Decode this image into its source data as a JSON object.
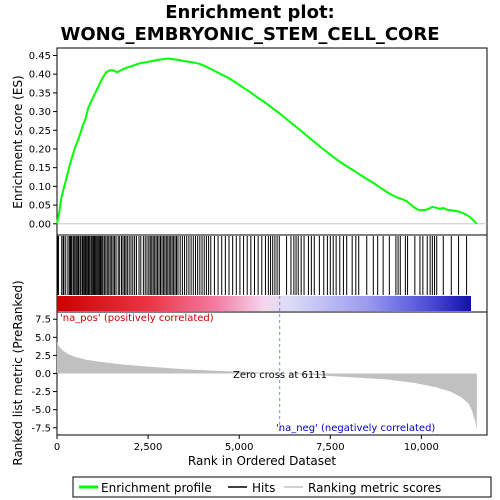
{
  "chart_data": {
    "type": "line",
    "title_line1": "Enrichment plot:",
    "title_line2": "WONG_EMBRYONIC_STEM_CELL_CORE",
    "top_panel": {
      "ylabel": "Enrichment score (ES)",
      "ylim": [
        -0.03,
        0.47
      ],
      "yticks": [
        "0.00",
        "0.05",
        "0.10",
        "0.15",
        "0.20",
        "0.25",
        "0.30",
        "0.35",
        "0.40",
        "0.45"
      ],
      "ytick_values": [
        0,
        0.05,
        0.1,
        0.15,
        0.2,
        0.25,
        0.3,
        0.35,
        0.4,
        0.45
      ],
      "series": [
        {
          "name": "Enrichment profile",
          "color": "#00ff00",
          "x": [
            0,
            60,
            120,
            200,
            280,
            360,
            450,
            520,
            600,
            700,
            780,
            860,
            950,
            1050,
            1150,
            1250,
            1350,
            1450,
            1550,
            1650,
            1750,
            1850,
            2000,
            2150,
            2300,
            2450,
            2600,
            2750,
            2900,
            3050,
            3200,
            3350,
            3500,
            3700,
            3900,
            4100,
            4300,
            4500,
            4700,
            4900,
            5100,
            5300,
            5500,
            5700,
            5900,
            6111,
            6300,
            6500,
            6700,
            6900,
            7100,
            7300,
            7500,
            7700,
            7900,
            8100,
            8300,
            8500,
            8700,
            8900,
            9100,
            9300,
            9400,
            9500,
            9600,
            9700,
            9800,
            9900,
            10000,
            10100,
            10200,
            10300,
            10400,
            10500,
            10600,
            10700,
            10800,
            10900,
            11000,
            11100,
            11200,
            11300,
            11400,
            11520
          ],
          "y": [
            0.0,
            0.03,
            0.07,
            0.1,
            0.13,
            0.16,
            0.19,
            0.21,
            0.23,
            0.26,
            0.28,
            0.31,
            0.33,
            0.35,
            0.37,
            0.39,
            0.405,
            0.41,
            0.41,
            0.405,
            0.41,
            0.415,
            0.42,
            0.425,
            0.43,
            0.432,
            0.435,
            0.438,
            0.44,
            0.442,
            0.44,
            0.438,
            0.435,
            0.432,
            0.428,
            0.42,
            0.41,
            0.4,
            0.39,
            0.378,
            0.365,
            0.352,
            0.338,
            0.325,
            0.31,
            0.295,
            0.28,
            0.264,
            0.248,
            0.232,
            0.216,
            0.2,
            0.185,
            0.17,
            0.157,
            0.145,
            0.132,
            0.12,
            0.108,
            0.095,
            0.082,
            0.072,
            0.068,
            0.065,
            0.06,
            0.052,
            0.044,
            0.038,
            0.036,
            0.037,
            0.04,
            0.045,
            0.043,
            0.04,
            0.042,
            0.038,
            0.036,
            0.035,
            0.033,
            0.03,
            0.026,
            0.02,
            0.012,
            0.0
          ]
        }
      ]
    },
    "hits": [
      20,
      40,
      130,
      170,
      190,
      240,
      300,
      340,
      370,
      400,
      440,
      470,
      500,
      540,
      570,
      590,
      630,
      660,
      700,
      720,
      750,
      780,
      800,
      830,
      860,
      880,
      910,
      950,
      980,
      1000,
      1030,
      1060,
      1090,
      1120,
      1150,
      1180,
      1200,
      1230,
      1260,
      1300,
      1340,
      1380,
      1420,
      1460,
      1500,
      1540,
      1580,
      1620,
      1680,
      1720,
      1770,
      1810,
      1850,
      1890,
      1930,
      1980,
      2030,
      2080,
      2130,
      2180,
      2250,
      2300,
      2370,
      2420,
      2470,
      2520,
      2560,
      2600,
      2640,
      2680,
      2720,
      2760,
      2800,
      2840,
      2880,
      2920,
      2960,
      3000,
      3040,
      3080,
      3120,
      3160,
      3200,
      3240,
      3280,
      3320,
      3380,
      3440,
      3500,
      3560,
      3620,
      3680,
      3740,
      3800,
      3860,
      3920,
      3980,
      4040,
      4100,
      4160,
      4220,
      4320,
      4420,
      4520,
      4620,
      4720,
      4820,
      4920,
      5020,
      5120,
      5220,
      5320,
      5420,
      5520,
      5620,
      5720,
      5800,
      5860,
      5920,
      5980,
      6040,
      6100,
      6300,
      6420,
      6500,
      6560,
      6620,
      6700,
      6780,
      6900,
      6980,
      7060,
      7200,
      7320,
      7420,
      7500,
      7580,
      7660,
      7760,
      7860,
      7950,
      8100,
      8200,
      8280,
      8500,
      8680,
      8800,
      8950,
      9120,
      9300,
      9360,
      9420,
      9560,
      9620,
      9820,
      9960,
      10040,
      10160,
      10240,
      10300,
      10360,
      10420,
      10600,
      10820,
      11020,
      11240
    ],
    "ranked_panel": {
      "ylabel": "Ranked list metric (PreRanked)",
      "ylim": [
        -8.5,
        8.5
      ],
      "yticks": [
        "7.5",
        "5.0",
        "2.5",
        "0.0",
        "-2.5",
        "-5.0",
        "-7.5"
      ],
      "ytick_values": [
        7.5,
        5.0,
        2.5,
        0.0,
        -2.5,
        -5.0,
        -7.5
      ],
      "x": [
        0,
        50,
        150,
        300,
        500,
        800,
        1200,
        1800,
        2500,
        3500,
        4500,
        5500,
        6111,
        7000,
        8000,
        9000,
        9800,
        10400,
        10800,
        11100,
        11300,
        11400,
        11470,
        11520
      ],
      "y": [
        4.4,
        3.8,
        3.2,
        2.7,
        2.3,
        1.9,
        1.6,
        1.25,
        0.95,
        0.6,
        0.35,
        0.15,
        0.0,
        -0.2,
        -0.5,
        -0.8,
        -1.3,
        -1.9,
        -2.5,
        -3.3,
        -4.2,
        -5.3,
        -6.5,
        -7.7
      ],
      "pos_label": "'na_pos' (positively correlated)",
      "neg_label": "'na_neg' (negatively correlated)",
      "zero_cross_label": "Zero cross at 6111",
      "zero_cross": 6111
    },
    "xlabel": "Rank in Ordered Dataset",
    "xlim": [
      0,
      11800
    ],
    "xticks": [
      "0",
      "2,500",
      "5,000",
      "7,500",
      "10,000"
    ],
    "xtick_values": [
      0,
      2500,
      5000,
      7500,
      10000
    ],
    "n_genes": 11520,
    "legend": {
      "placement": "bottom",
      "items": [
        {
          "label": "Enrichment profile",
          "color": "#00ff00"
        },
        {
          "label": "Hits",
          "color": "#000000"
        },
        {
          "label": "Ranking metric scores",
          "color": "#c0c0c0"
        }
      ]
    },
    "colors": {
      "pos_text": "#cc0000",
      "neg_text": "#0000cc",
      "metric_fill": "#c0c0c0",
      "zero_line": "#6a8fd6"
    }
  }
}
